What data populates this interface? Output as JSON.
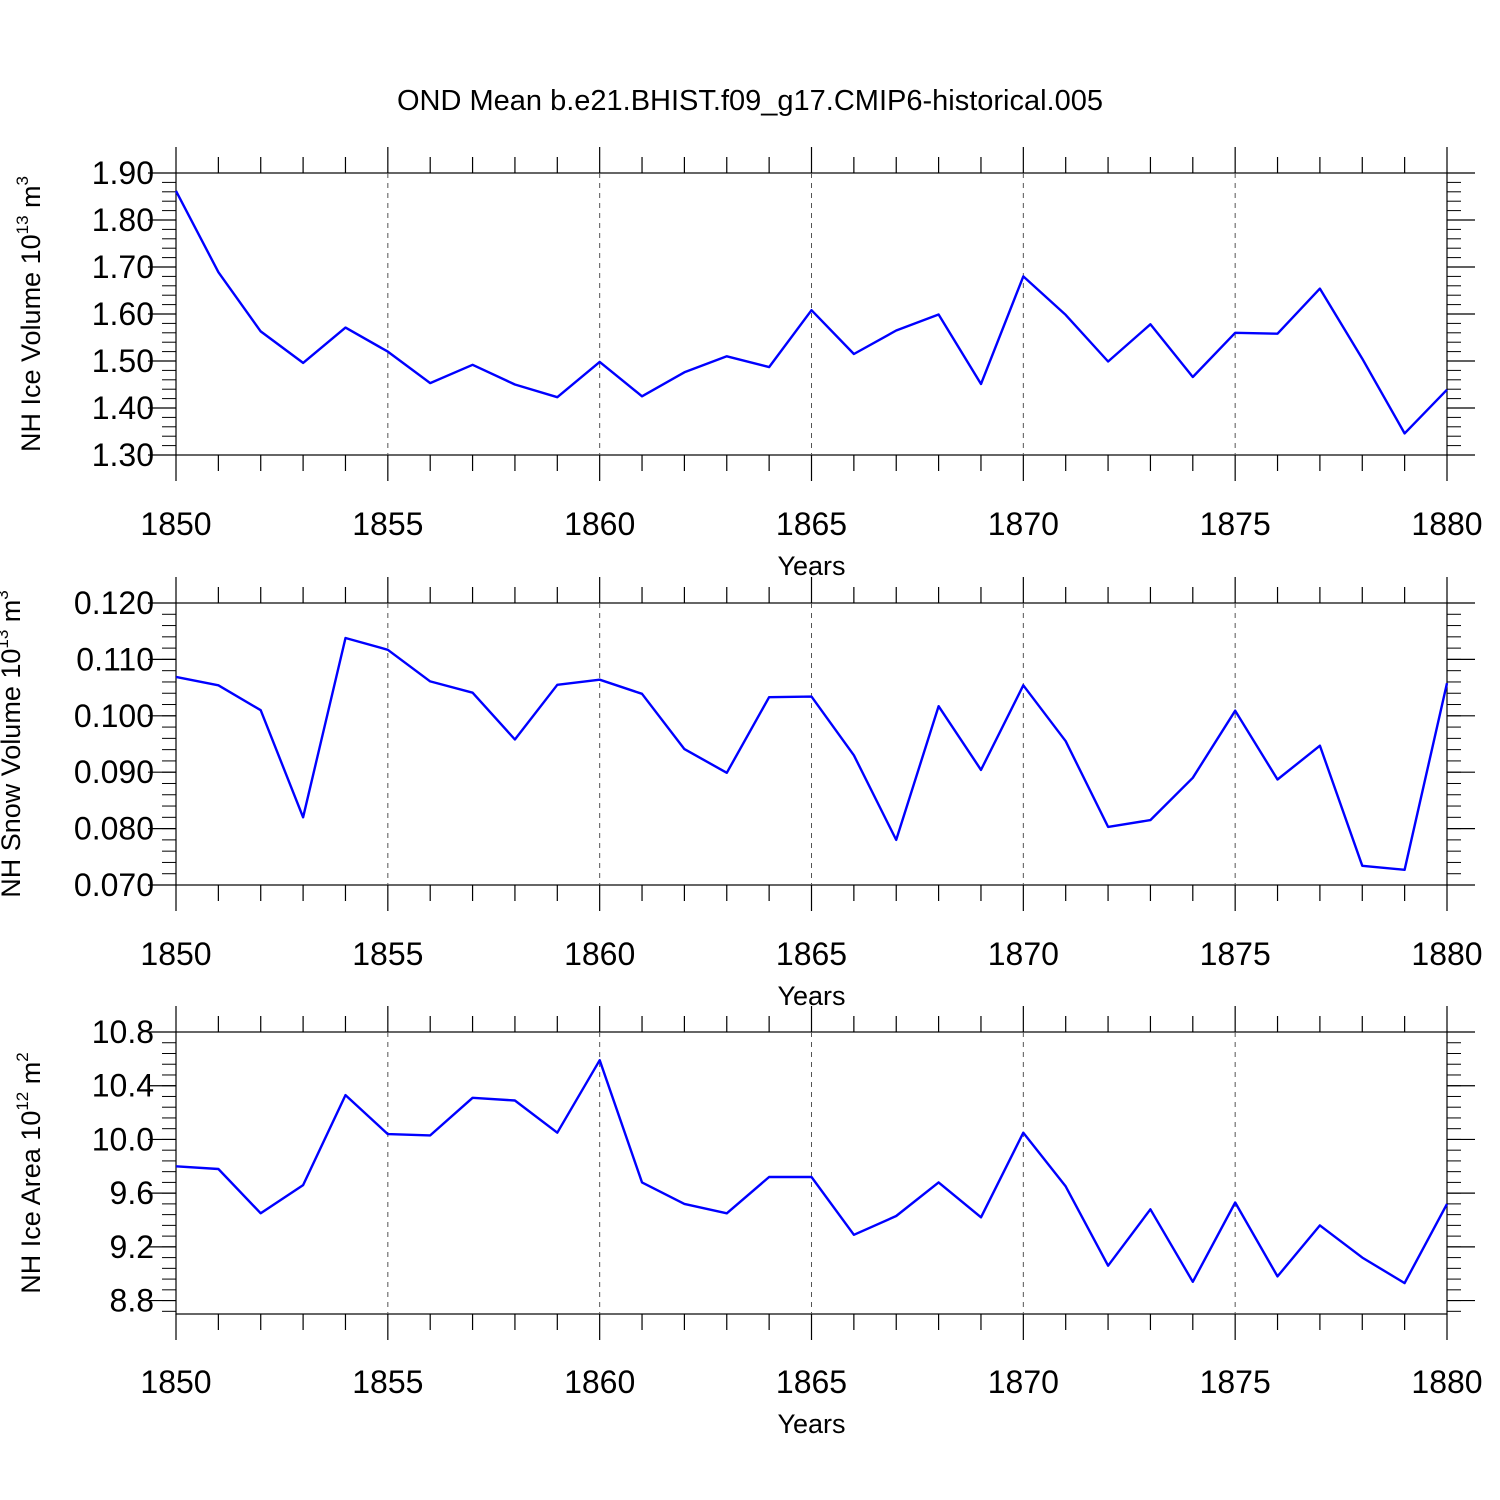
{
  "title": "OND Mean b.e21.BHIST.f09_g17.CMIP6-historical.005",
  "line_color": "#0000ff",
  "chart_data": [
    {
      "type": "line",
      "ylabel": {
        "base": "NH Ice Volume 10",
        "exp": "13",
        "unit": " m",
        "unit_exp": "3"
      },
      "xlabel": "Years",
      "xlim": [
        1850,
        1880
      ],
      "ylim": [
        1.3,
        1.9
      ],
      "x_ticks": [
        "1850",
        "1855",
        "1860",
        "1865",
        "1870",
        "1875",
        "1880"
      ],
      "y_ticks": [
        "1.30",
        "1.40",
        "1.50",
        "1.60",
        "1.70",
        "1.80",
        "1.90"
      ],
      "x": [
        1850,
        1851,
        1852,
        1853,
        1854,
        1855,
        1856,
        1857,
        1858,
        1859,
        1860,
        1861,
        1862,
        1863,
        1864,
        1865,
        1866,
        1867,
        1868,
        1869,
        1870,
        1871,
        1872,
        1873,
        1874,
        1875,
        1876,
        1877,
        1878,
        1879,
        1880
      ],
      "values": [
        1.862,
        1.689,
        1.563,
        1.496,
        1.571,
        1.52,
        1.453,
        1.492,
        1.45,
        1.423,
        1.498,
        1.425,
        1.476,
        1.51,
        1.487,
        1.608,
        1.515,
        1.565,
        1.599,
        1.451,
        1.68,
        1.598,
        1.499,
        1.578,
        1.466,
        1.56,
        1.558,
        1.654,
        1.505,
        1.346,
        1.439
      ]
    },
    {
      "type": "line",
      "ylabel": {
        "base": "NH Snow Volume 10",
        "exp": "13",
        "unit": " m",
        "unit_exp": "3"
      },
      "xlabel": "Years",
      "xlim": [
        1850,
        1880
      ],
      "ylim": [
        0.07,
        0.12
      ],
      "x_ticks": [
        "1850",
        "1855",
        "1860",
        "1865",
        "1870",
        "1875",
        "1880"
      ],
      "y_ticks": [
        "0.070",
        "0.080",
        "0.090",
        "0.100",
        "0.110",
        "0.120"
      ],
      "x": [
        1850,
        1851,
        1852,
        1853,
        1854,
        1855,
        1856,
        1857,
        1858,
        1859,
        1860,
        1861,
        1862,
        1863,
        1864,
        1865,
        1866,
        1867,
        1868,
        1869,
        1870,
        1871,
        1872,
        1873,
        1874,
        1875,
        1876,
        1877,
        1878,
        1879,
        1880
      ],
      "values": [
        0.1069,
        0.1054,
        0.101,
        0.082,
        0.1138,
        0.1117,
        0.1061,
        0.1041,
        0.0958,
        0.1055,
        0.1064,
        0.1039,
        0.0941,
        0.0899,
        0.1033,
        0.1034,
        0.093,
        0.078,
        0.1017,
        0.0904,
        0.1054,
        0.0955,
        0.0803,
        0.0815,
        0.089,
        0.1009,
        0.0887,
        0.0947,
        0.0734,
        0.0727,
        0.1058
      ]
    },
    {
      "type": "line",
      "ylabel": {
        "base": "NH Ice Area 10",
        "exp": "12",
        "unit": " m",
        "unit_exp": "2"
      },
      "xlabel": "Years",
      "xlim": [
        1850,
        1880
      ],
      "ylim": [
        8.7,
        10.8
      ],
      "x_ticks": [
        "1850",
        "1855",
        "1860",
        "1865",
        "1870",
        "1875",
        "1880"
      ],
      "y_ticks": [
        "8.8",
        "9.2",
        "9.6",
        "10.0",
        "10.4",
        "10.8"
      ],
      "y_tick_values": [
        8.8,
        9.2,
        9.6,
        10.0,
        10.4,
        10.8
      ],
      "x": [
        1850,
        1851,
        1852,
        1853,
        1854,
        1855,
        1856,
        1857,
        1858,
        1859,
        1860,
        1861,
        1862,
        1863,
        1864,
        1865,
        1866,
        1867,
        1868,
        1869,
        1870,
        1871,
        1872,
        1873,
        1874,
        1875,
        1876,
        1877,
        1878,
        1879,
        1880
      ],
      "values": [
        9.8,
        9.78,
        9.45,
        9.66,
        10.33,
        10.04,
        10.03,
        10.31,
        10.29,
        10.05,
        10.59,
        9.68,
        9.52,
        9.45,
        9.72,
        9.72,
        9.29,
        9.43,
        9.68,
        9.42,
        10.05,
        9.65,
        9.06,
        9.48,
        8.94,
        9.53,
        8.98,
        9.36,
        9.12,
        8.93,
        9.52
      ]
    }
  ]
}
